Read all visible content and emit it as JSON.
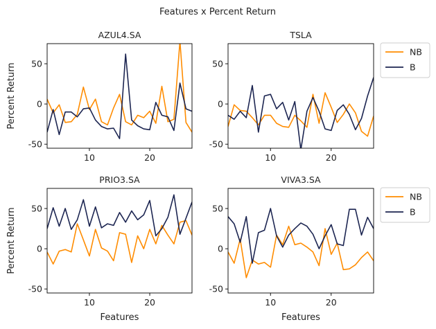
{
  "figure": {
    "title": "Features x Percent Return"
  },
  "colors": {
    "NB": "#FF8C00",
    "B": "#1C2551"
  },
  "chart_data": [
    {
      "type": "line",
      "title": "AZUL4.SA",
      "xlabel": "",
      "ylabel": "Percent Return",
      "xlim": [
        3,
        27
      ],
      "ylim": [
        -55,
        75
      ],
      "xticks": [
        10,
        20
      ],
      "yticks": [
        -50,
        0,
        50
      ],
      "legend": false,
      "x": [
        3,
        4,
        5,
        6,
        7,
        8,
        9,
        10,
        11,
        12,
        13,
        14,
        15,
        16,
        17,
        18,
        19,
        20,
        21,
        22,
        23,
        24,
        25,
        26,
        27
      ],
      "series": [
        {
          "name": "NB",
          "values": [
            6,
            -11,
            -1,
            -23,
            -22,
            -13,
            21,
            -7,
            6,
            -22,
            -26,
            -5,
            12,
            -22,
            -26,
            -14,
            -17,
            -9,
            -24,
            22,
            -22,
            -19,
            78,
            -23,
            -35
          ]
        },
        {
          "name": "B",
          "values": [
            -35,
            -7,
            -38,
            -10,
            -10,
            -16,
            -6,
            -5,
            -20,
            -28,
            -31,
            -30,
            -43,
            62,
            -20,
            -27,
            -31,
            -32,
            2,
            -14,
            -16,
            -33,
            26,
            -6,
            -9
          ]
        }
      ]
    },
    {
      "type": "line",
      "title": "TSLA",
      "xlabel": "",
      "ylabel": "",
      "xlim": [
        3,
        27
      ],
      "ylim": [
        -55,
        75
      ],
      "xticks": [
        10,
        20
      ],
      "yticks": [
        -50,
        0,
        50
      ],
      "legend": true,
      "x": [
        3,
        4,
        5,
        6,
        7,
        8,
        9,
        10,
        11,
        12,
        13,
        14,
        15,
        16,
        17,
        18,
        19,
        20,
        21,
        22,
        23,
        24,
        25,
        26,
        27
      ],
      "series": [
        {
          "name": "NB",
          "values": [
            -28,
            -1,
            -8,
            -9,
            -17,
            -26,
            -14,
            -14,
            -24,
            -28,
            -29,
            -14,
            -21,
            -29,
            12,
            -24,
            14,
            -4,
            -23,
            -13,
            0,
            -11,
            -34,
            -40,
            -15
          ]
        },
        {
          "name": "B",
          "values": [
            -14,
            -19,
            -9,
            -17,
            23,
            -35,
            10,
            12,
            -6,
            2,
            -20,
            3,
            -57,
            -9,
            8,
            -9,
            -31,
            -33,
            -8,
            -1,
            -13,
            -32,
            -18,
            10,
            33
          ]
        }
      ]
    },
    {
      "type": "line",
      "title": "PRIO3.SA",
      "xlabel": "Features",
      "ylabel": "Percent Return",
      "xlim": [
        3,
        27
      ],
      "ylim": [
        -55,
        75
      ],
      "xticks": [
        10,
        20
      ],
      "yticks": [
        -50,
        0,
        50
      ],
      "legend": false,
      "x": [
        3,
        4,
        5,
        6,
        7,
        8,
        9,
        10,
        11,
        12,
        13,
        14,
        15,
        16,
        17,
        18,
        19,
        20,
        21,
        22,
        23,
        24,
        25,
        26,
        27
      ],
      "series": [
        {
          "name": "NB",
          "values": [
            -4,
            -19,
            -3,
            -1,
            -4,
            31,
            11,
            -9,
            24,
            1,
            -3,
            -15,
            20,
            18,
            -17,
            16,
            0,
            24,
            6,
            29,
            17,
            6,
            33,
            35,
            17
          ]
        },
        {
          "name": "B",
          "values": [
            25,
            51,
            28,
            50,
            24,
            36,
            61,
            28,
            52,
            26,
            31,
            29,
            45,
            33,
            47,
            36,
            42,
            60,
            16,
            25,
            39,
            67,
            18,
            38,
            58
          ]
        }
      ]
    },
    {
      "type": "line",
      "title": "VIVA3.SA",
      "xlabel": "Features",
      "ylabel": "",
      "xlim": [
        3,
        27
      ],
      "ylim": [
        -55,
        75
      ],
      "xticks": [
        10,
        20
      ],
      "yticks": [
        -50,
        0,
        50
      ],
      "legend": true,
      "x": [
        3,
        4,
        5,
        6,
        7,
        8,
        9,
        10,
        11,
        12,
        13,
        14,
        15,
        16,
        17,
        18,
        19,
        20,
        21,
        22,
        23,
        24,
        25,
        26,
        27
      ],
      "series": [
        {
          "name": "NB",
          "values": [
            -4,
            -18,
            12,
            -36,
            -14,
            -19,
            -17,
            -23,
            17,
            5,
            28,
            5,
            7,
            2,
            -4,
            -21,
            25,
            -7,
            7,
            -26,
            -25,
            -20,
            -11,
            -4,
            -15
          ]
        },
        {
          "name": "B",
          "values": [
            40,
            31,
            8,
            40,
            -18,
            20,
            23,
            50,
            16,
            2,
            17,
            25,
            32,
            28,
            18,
            0,
            16,
            30,
            6,
            4,
            49,
            49,
            17,
            39,
            25
          ]
        }
      ]
    }
  ]
}
